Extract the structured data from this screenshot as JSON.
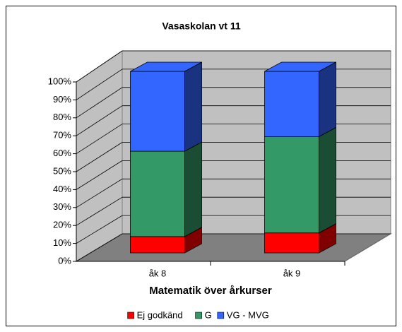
{
  "chart_data": {
    "type": "bar",
    "stacked": true,
    "title": "Vasaskolan vt 11",
    "x_label": "Matematik över årkurser",
    "categories": [
      "åk 8",
      "åk 9"
    ],
    "series": [
      {
        "name": "Ej godkänd",
        "color": "#ff0000",
        "values": [
          9,
          11
        ]
      },
      {
        "name": "G",
        "color": "#339966",
        "values": [
          47,
          53
        ]
      },
      {
        "name": "VG - MVG",
        "color": "#3366ff",
        "values": [
          44,
          36
        ]
      }
    ],
    "ylim": [
      0,
      100
    ],
    "yticks": [
      {
        "value": 0,
        "label": "0%"
      },
      {
        "value": 10,
        "label": "10%"
      },
      {
        "value": 20,
        "label": "20%"
      },
      {
        "value": 30,
        "label": "30%"
      },
      {
        "value": 40,
        "label": "40%"
      },
      {
        "value": 50,
        "label": "50%"
      },
      {
        "value": 60,
        "label": "60%"
      },
      {
        "value": 70,
        "label": "70%"
      },
      {
        "value": 80,
        "label": "80%"
      },
      {
        "value": 90,
        "label": "90%"
      },
      {
        "value": 100,
        "label": "100%"
      }
    ],
    "grid": true,
    "legend": "bottom"
  }
}
